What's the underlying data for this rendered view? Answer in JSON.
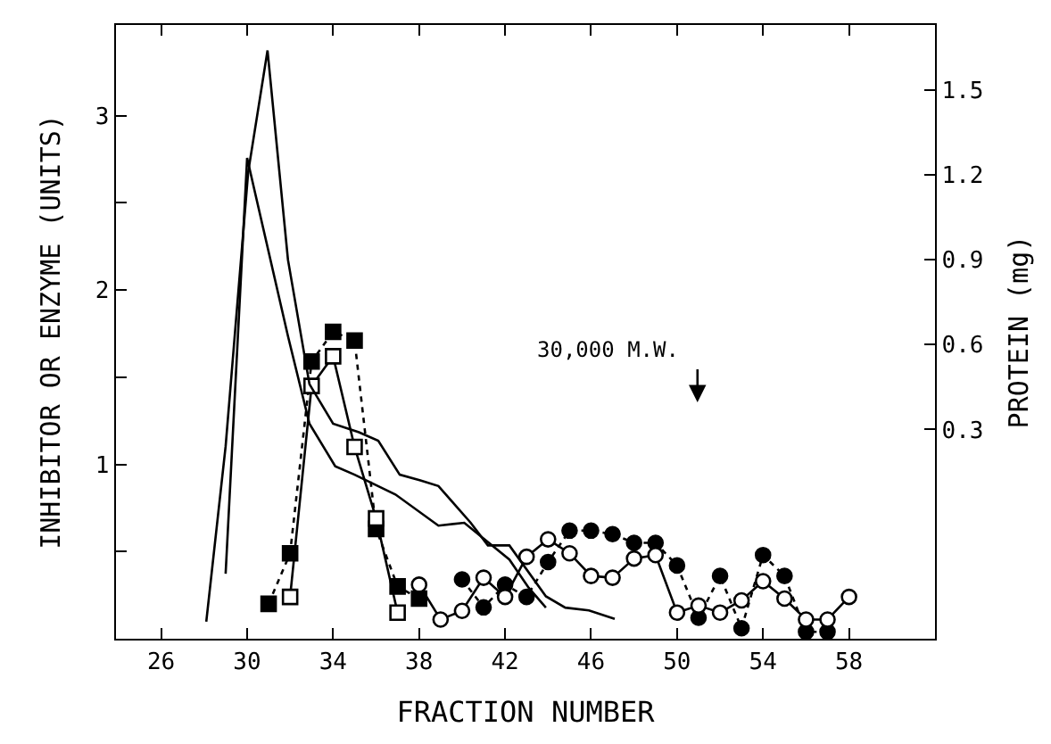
{
  "chart_data": {
    "type": "line",
    "xlabel": "FRACTION NUMBER",
    "ylabel": "INHIBITOR OR ENZYME (UNITS)",
    "y2label": "PROTEIN (mg)",
    "xlim": [
      23.9,
      62.0
    ],
    "xticks": [
      26,
      30,
      34,
      38,
      42,
      46,
      50,
      54,
      58
    ],
    "ylim": [
      0,
      3.52
    ],
    "yticks": [
      {
        "value": 0.5,
        "label": null
      },
      1,
      {
        "value": 1.5,
        "label": null
      },
      2,
      {
        "value": 2.5,
        "label": null
      },
      3
    ],
    "y2lim": [
      -0.44,
      1.73
    ],
    "y2ticks": [
      0.3,
      0.6,
      0.9,
      1.2,
      1.5
    ],
    "annotations": [
      "30,000 M.W."
    ],
    "series": [
      {
        "color": "#000000",
        "marker": "square",
        "line_style": "dotted",
        "x": [
          31,
          32,
          33,
          34,
          35,
          36,
          37,
          38
        ],
        "values": [
          0.2,
          0.49,
          1.59,
          1.76,
          1.71,
          0.63,
          0.3,
          0.23
        ]
      },
      {
        "color": "#000000",
        "marker": "square",
        "line_style": "solid",
        "x": [
          32,
          33,
          34,
          35,
          36,
          37
        ],
        "values": [
          0.24,
          1.45,
          1.62,
          1.1,
          0.69,
          0.15
        ]
      },
      {
        "color": "#000000",
        "marker": "circle",
        "line_style": "dotted",
        "x": [
          40,
          41,
          42,
          43,
          44,
          45,
          46,
          47,
          48,
          49,
          50,
          51,
          52,
          53,
          54,
          55,
          56,
          57
        ],
        "values": [
          0.34,
          0.18,
          0.31,
          0.24,
          0.44,
          0.62,
          0.62,
          0.6,
          0.55,
          0.55,
          0.42,
          0.12,
          0.36,
          0.06,
          0.48,
          0.36,
          0.04,
          0.04
        ]
      },
      {
        "color": "#000000",
        "marker": "circle",
        "line_style": "solid",
        "x": [
          38,
          39,
          40,
          41,
          42,
          43,
          44,
          45,
          46,
          47,
          48,
          49,
          50,
          51,
          52,
          53,
          54,
          55,
          56,
          57,
          58
        ],
        "values": [
          0.31,
          0.11,
          0.16,
          0.35,
          0.24,
          0.47,
          0.57,
          0.49,
          0.36,
          0.35,
          0.46,
          0.48,
          0.15,
          0.19,
          0.15,
          0.22,
          0.33,
          0.23,
          0.11,
          0.11,
          0.24
        ]
      },
      {
        "color": "#000000",
        "marker": "none",
        "line_style": "solid",
        "axis": "y2",
        "x": [
          28.1,
          29.0,
          30.05,
          30.95,
          31.9,
          32.9,
          34.0,
          35.2,
          36.1,
          37.1,
          38.06,
          38.9,
          40.4,
          41.2,
          42.2,
          43.9,
          44.8,
          45.9,
          47.1
        ],
        "values": [
          -0.38,
          0.24,
          1.21,
          1.64,
          0.9,
          0.46,
          0.32,
          0.29,
          0.26,
          0.14,
          0.12,
          0.1,
          -0.03,
          -0.11,
          -0.11,
          -0.29,
          -0.33,
          -0.34,
          -0.37
        ]
      },
      {
        "color": "#000000",
        "marker": "none",
        "line_style": "solid",
        "axis": "y2",
        "x": [
          29.0,
          30.0,
          30.3,
          31.9,
          32.9,
          34.1,
          35.0,
          36.9,
          38.9,
          40.1,
          42.2,
          43.1,
          43.9
        ],
        "values": [
          -0.21,
          1.26,
          1.16,
          0.63,
          0.32,
          0.17,
          0.14,
          0.07,
          -0.04,
          -0.03,
          -0.16,
          -0.26,
          -0.33
        ]
      }
    ]
  }
}
